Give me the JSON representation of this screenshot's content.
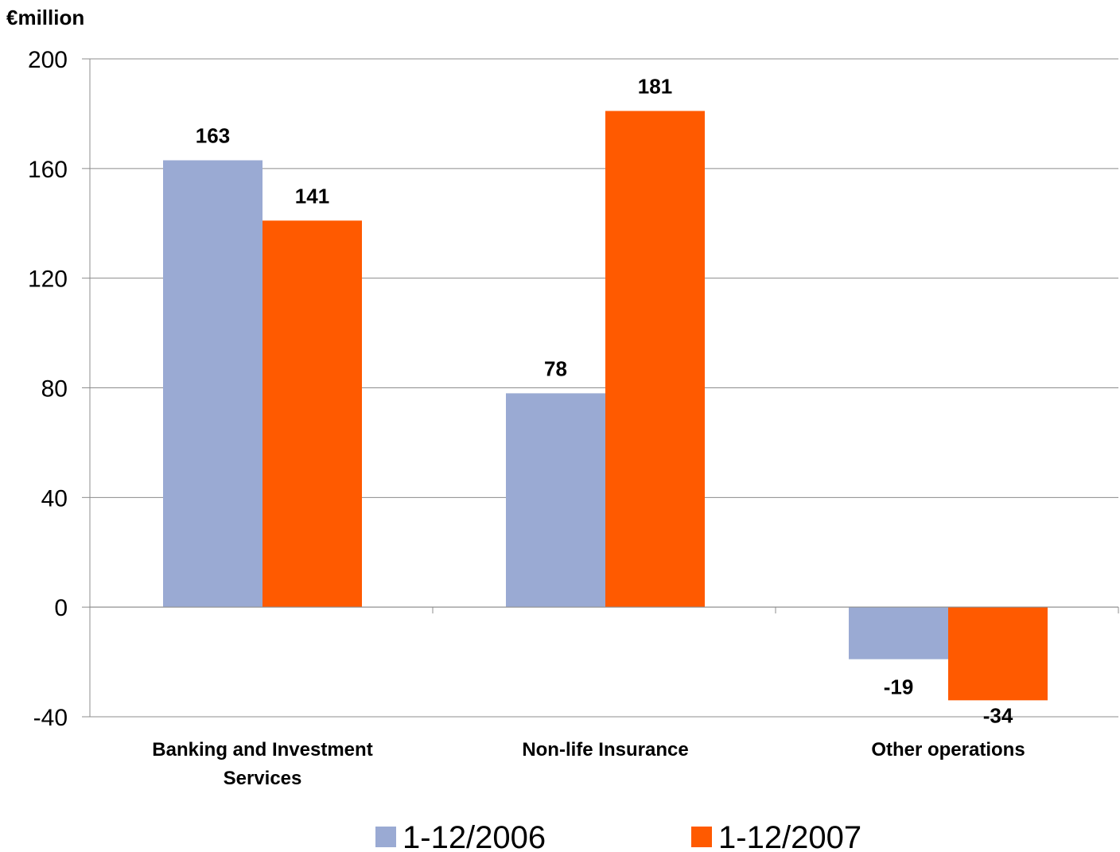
{
  "chart_data": {
    "type": "bar",
    "unit_label": "€million",
    "categories": [
      [
        "Banking and Investment",
        "Services"
      ],
      [
        "Non-life Insurance"
      ],
      [
        "Other operations"
      ]
    ],
    "series": [
      {
        "name": "1-12/2006",
        "color": "#9AAAD3",
        "values": [
          163,
          78,
          -19
        ]
      },
      {
        "name": "1-12/2007",
        "color": "#FF5A00",
        "values": [
          141,
          181,
          -34
        ]
      }
    ],
    "ylim": [
      -40,
      200
    ],
    "yticks": [
      -40,
      0,
      40,
      80,
      120,
      160,
      200
    ],
    "grid": true,
    "legend_position": "bottom"
  }
}
